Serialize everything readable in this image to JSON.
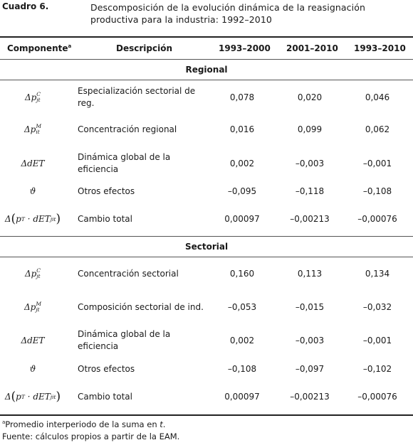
{
  "caption": {
    "label": "Cuadro 6.",
    "title": "Descomposición de la evolución dinámica de la reasignación productiva para la industria: 1992–2010"
  },
  "header": {
    "component": "Componente",
    "component_mark": "a",
    "description": "Descripción",
    "period1": "1993–2000",
    "period2": "2001–2010",
    "period3": "1993–2010"
  },
  "sections": [
    {
      "title": "Regional",
      "rows": [
        {
          "symbol": "delta-p-C",
          "description": "Especialización sectorial de reg.",
          "v1": "0,078",
          "v2": "0,020",
          "v3": "0,046"
        },
        {
          "symbol": "delta-p-M",
          "description": "Concentración regional",
          "v1": "0,016",
          "v2": "0,099",
          "v3": "0,062"
        },
        {
          "symbol": "delta-dET",
          "description": "Dinámica global de la eficiencia",
          "v1": "0,002",
          "v2": "–0,003",
          "v3": "–0,001"
        },
        {
          "symbol": "theta",
          "description": "Otros efectos",
          "v1": "–0,095",
          "v2": "–0,118",
          "v3": "–0,108"
        },
        {
          "symbol": "delta-total",
          "description": "Cambio total",
          "v1": "0,00097",
          "v2": "–0,00213",
          "v3": "–0,00076"
        }
      ]
    },
    {
      "title": "Sectorial",
      "rows": [
        {
          "symbol": "delta-p-C",
          "description": "Concentración sectorial",
          "v1": "0,160",
          "v2": "0,113",
          "v3": "0,134"
        },
        {
          "symbol": "delta-p-M",
          "description": "Composición sectorial de ind.",
          "v1": "–0,053",
          "v2": "–0,015",
          "v3": "–0,032"
        },
        {
          "symbol": "delta-dET",
          "description": "Dinámica global de la eficiencia",
          "v1": "0,002",
          "v2": "–0,003",
          "v3": "–0,001"
        },
        {
          "symbol": "theta",
          "description": "Otros efectos",
          "v1": "–0,108",
          "v2": "–0,097",
          "v3": "–0,102"
        },
        {
          "symbol": "delta-total",
          "description": "Cambio total",
          "v1": "0,00097",
          "v2": "–0,00213",
          "v3": "–0,00076"
        }
      ]
    }
  ],
  "notes": {
    "footnote_mark": "a",
    "footnote_text": "Promedio interperiodo de la suma en ",
    "footnote_var": "t",
    "footnote_end": ".",
    "source": "Fuente: cálculos propios a partir de la EAM."
  }
}
